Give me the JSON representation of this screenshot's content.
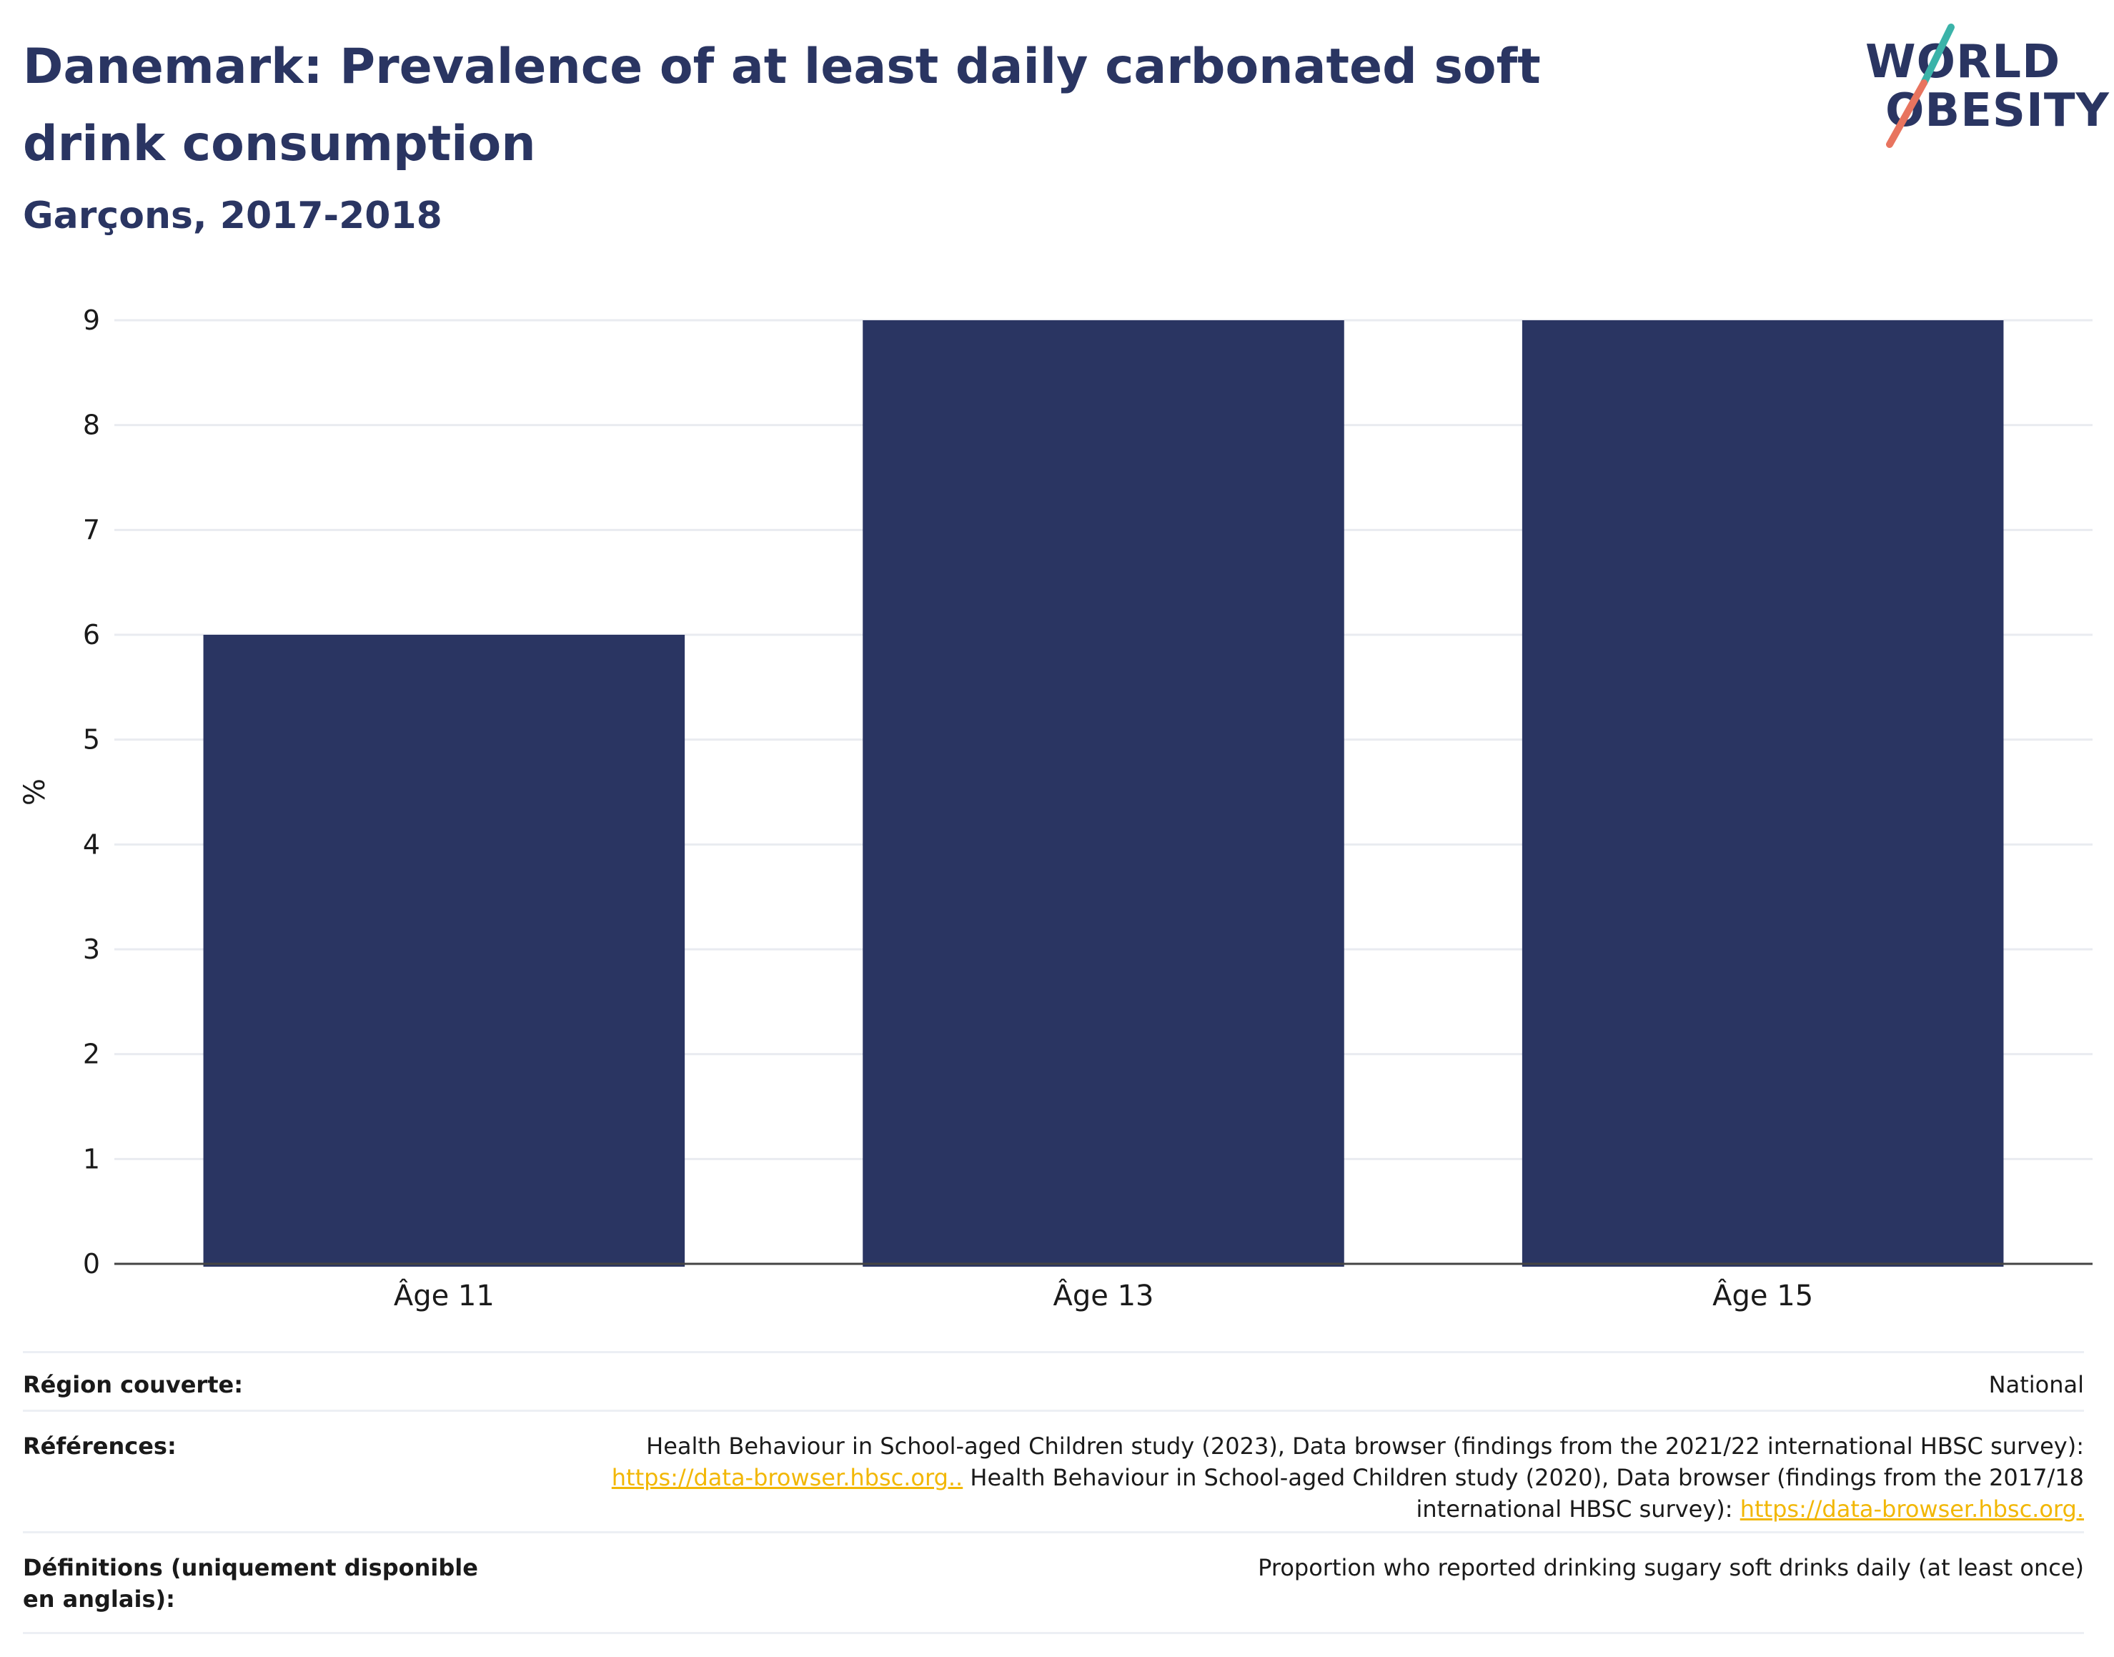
{
  "title": "Danemark: Prevalence of at least daily carbonated soft drink consumption",
  "subtitle": "Garçons, 2017-2018",
  "logo": {
    "line1": "WORLD",
    "line2": "OBESITY"
  },
  "colors": {
    "bar": "#2a3562",
    "grid": "#e9ebf0",
    "text": "#2a3562",
    "link": "#f2b705"
  },
  "chart_data": {
    "type": "bar",
    "categories": [
      "Âge 11",
      "Âge 13",
      "Âge 15"
    ],
    "values": [
      6,
      9,
      9
    ],
    "ylabel": "%",
    "ylim": [
      0,
      9
    ],
    "yticks": [
      0,
      1,
      2,
      3,
      4,
      5,
      6,
      7,
      8,
      9
    ],
    "grid": true
  },
  "meta": {
    "region_label": "Région couverte:",
    "region_value": "National",
    "references_label": "Références:",
    "ref_text1": "Health Behaviour in School-aged Children study (2023), Data browser (findings from the 2021/22 international HBSC survey):",
    "ref_link1": "https://data-browser.hbsc.org..",
    "ref_text2": " Health Behaviour in School-aged Children study (2020), Data browser (findings from the 2017/18 international HBSC survey): ",
    "ref_link2": "https://data-browser.hbsc.org.",
    "definitions_label": "Définitions (uniquement disponible en anglais):",
    "definitions_value": "Proportion who reported drinking sugary soft drinks daily (at least once)"
  }
}
